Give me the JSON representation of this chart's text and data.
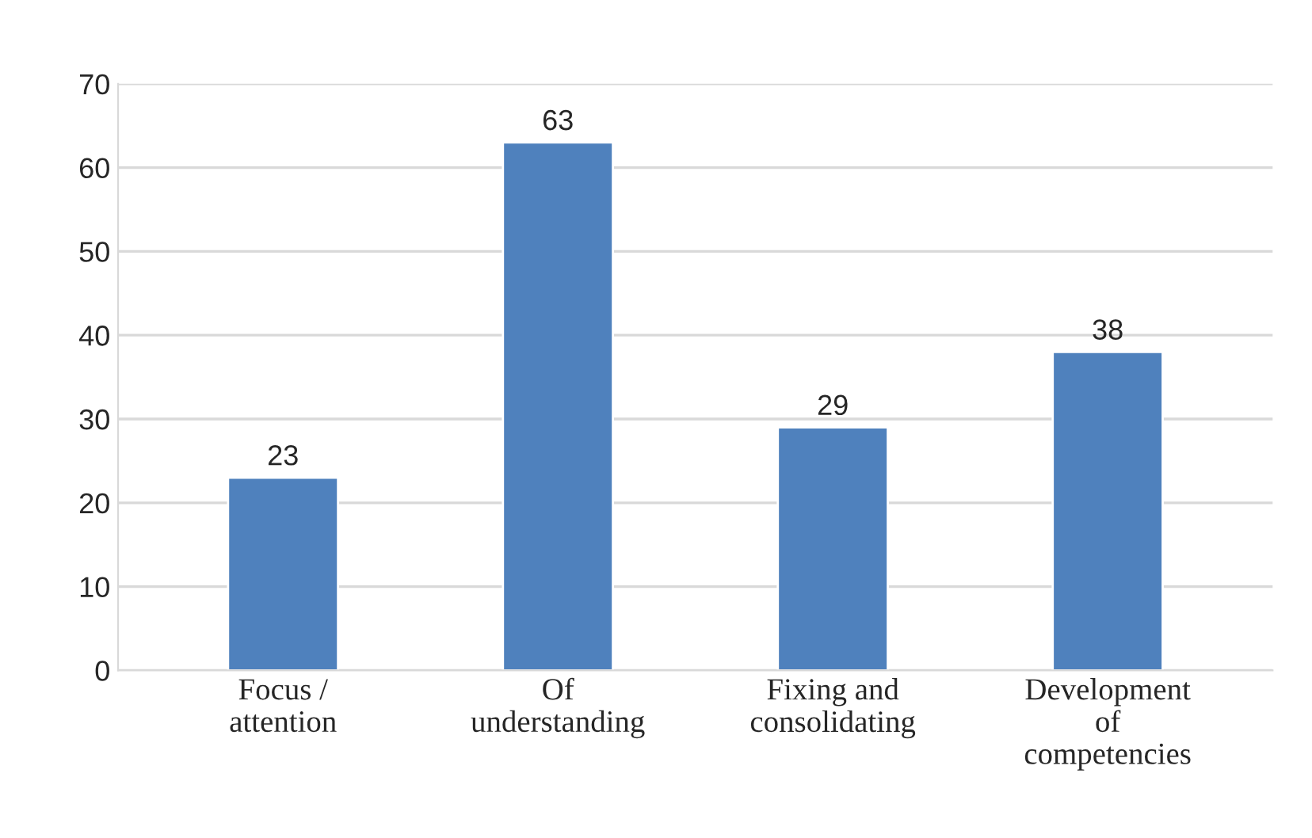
{
  "chart_data": {
    "type": "bar",
    "categories": [
      "Focus /\nattention",
      "Of\nunderstanding",
      "Fixing and\nconsolidating",
      "Development\nof\ncompetencies"
    ],
    "values": [
      23,
      63,
      29,
      38
    ],
    "color": "#4f81bd",
    "ylim": [
      0,
      70
    ],
    "yticks": [
      0,
      10,
      20,
      30,
      40,
      50,
      60,
      70
    ],
    "grid": "y",
    "data_labels": true
  }
}
